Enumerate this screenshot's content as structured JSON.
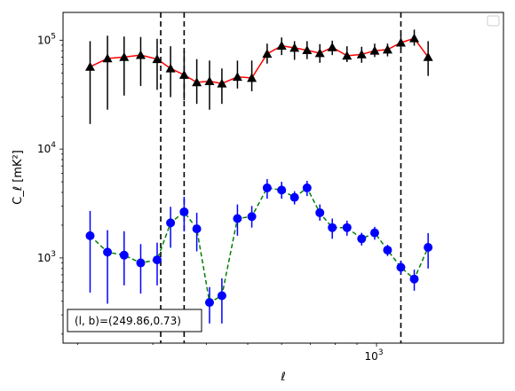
{
  "chart_data": {
    "type": "scatter",
    "title": "",
    "xlabel": "ℓ",
    "ylabel": "C_ℓ  [mK²]",
    "xscale": "log",
    "yscale": "log",
    "xlim": [
      185,
      1980
    ],
    "ylim": [
      165,
      180000
    ],
    "x_tick_labels": [
      {
        "value": 1000,
        "base": "10",
        "exp": "3"
      }
    ],
    "y_tick_labels": [
      {
        "value": 1000,
        "base": "10",
        "exp": "3"
      },
      {
        "value": 10000,
        "base": "10",
        "exp": "4"
      },
      {
        "value": 100000,
        "base": "10",
        "exp": "5"
      }
    ],
    "grid": false,
    "legend": {
      "placement": "top-right",
      "entries": []
    },
    "x": [
      214,
      235,
      257,
      281,
      307,
      330,
      355,
      380,
      407,
      435,
      473,
      511,
      555,
      600,
      643,
      688,
      737,
      788,
      853,
      923,
      990,
      1061,
      1140,
      1225,
      1320,
      1420,
      1530,
      1650,
      1780
    ],
    "series": [
      {
        "color": "#000000",
        "line_color": "#ff0000",
        "line_style": "solid",
        "marker": "triangle",
        "values": [
          57000,
          68000,
          70000,
          73000,
          67000,
          55000,
          48000,
          41000,
          42000,
          40000,
          46000,
          45000,
          75000,
          89000,
          85000,
          81000,
          76000,
          86000,
          72000,
          74000,
          80000,
          82000,
          95000,
          104000,
          70000
        ],
        "err_low": [
          17000,
          23000,
          31000,
          38000,
          35000,
          30000,
          28000,
          26000,
          23000,
          26000,
          36000,
          34000,
          61000,
          73000,
          66000,
          67000,
          62000,
          73000,
          63000,
          62000,
          70000,
          71000,
          83000,
          89000,
          47000
        ],
        "err_high": [
          98000,
          110000,
          108000,
          107000,
          103000,
          88000,
          80000,
          67000,
          65000,
          55000,
          65000,
          65000,
          93000,
          106000,
          98000,
          98000,
          92000,
          99000,
          88000,
          87000,
          93000,
          93000,
          112000,
          125000,
          98000
        ],
        "x_index": [
          0,
          1,
          2,
          3,
          4,
          5,
          6,
          7,
          8,
          9,
          10,
          11,
          12,
          13,
          14,
          15,
          16,
          17,
          18,
          19,
          20,
          21,
          22,
          23,
          24
        ]
      },
      {
        "color": "#0000ff",
        "line_color": "#008000",
        "line_style": "dashed",
        "marker": "circle",
        "values": [
          1600,
          1130,
          1060,
          900,
          960,
          2100,
          2650,
          1850,
          390,
          450,
          2300,
          2400,
          4400,
          4200,
          3600,
          4400,
          2600,
          1900,
          1900,
          1500,
          1700,
          1180,
          820,
          640,
          1250
        ],
        "err_low": [
          480,
          380,
          560,
          470,
          560,
          1240,
          1750,
          1150,
          250,
          250,
          1600,
          1900,
          3500,
          3500,
          3100,
          3700,
          2200,
          1500,
          1600,
          1300,
          1470,
          1040,
          710,
          500,
          800
        ],
        "err_high": [
          2700,
          1800,
          1760,
          1340,
          1380,
          2950,
          3650,
          2600,
          540,
          650,
          3100,
          3000,
          5300,
          5000,
          4100,
          5100,
          3100,
          2300,
          2200,
          1700,
          1930,
          1320,
          940,
          780,
          1690
        ],
        "x_index": [
          0,
          1,
          2,
          3,
          4,
          5,
          6,
          7,
          8,
          9,
          10,
          11,
          12,
          13,
          14,
          15,
          16,
          17,
          18,
          19,
          20,
          21,
          22,
          23,
          24
        ]
      }
    ],
    "vertical_lines": [
      313,
      355,
      1140
    ],
    "annotation": "(l, b)=(249.86,0.73)"
  }
}
